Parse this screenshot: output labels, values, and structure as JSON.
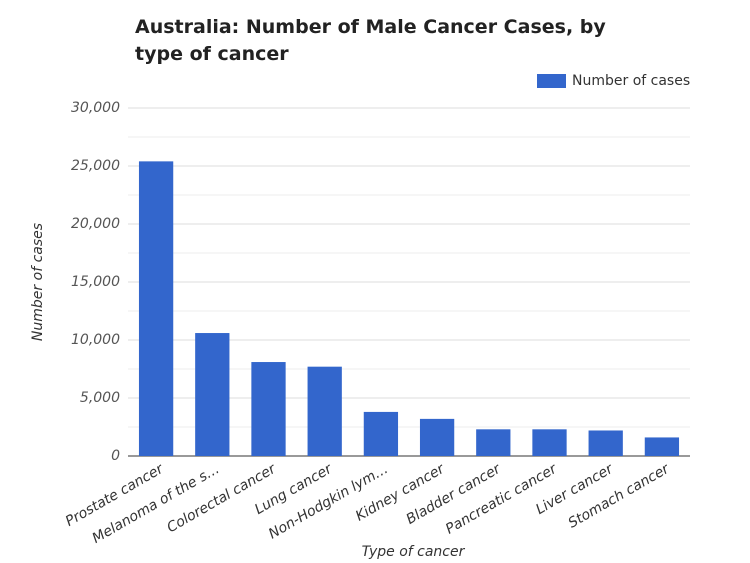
{
  "chart_data": {
    "type": "bar",
    "title": "Australia: Number of Male Cancer Cases, by type of cancer",
    "x_label": "Type of cancer",
    "y_label": "Number of cases",
    "categories": [
      "Prostate cancer",
      "Melanoma of the s…",
      "Colorectal cancer",
      "Lung cancer",
      "Non-Hodgkin lym…",
      "Kidney cancer",
      "Bladder cancer",
      "Pancreatic cancer",
      "Liver cancer",
      "Stomach cancer"
    ],
    "series": [
      {
        "name": "Number of cases",
        "color": "#3366cc",
        "values": [
          25400,
          10600,
          8100,
          7700,
          3800,
          3200,
          2300,
          2300,
          2200,
          1600
        ]
      }
    ],
    "ylim": [
      0,
      30000
    ],
    "yticks": [
      0,
      {
        "value": 5000,
        "label": "5,000"
      },
      {
        "value": 10000,
        "label": "10,000"
      },
      {
        "value": 15000,
        "label": "15,000"
      },
      {
        "value": 20000,
        "label": "20,000"
      },
      {
        "value": 25000,
        "label": "25,000"
      },
      {
        "value": 30000,
        "label": "30,000"
      }
    ],
    "minor_grid": [
      2500,
      7500,
      12500,
      17500,
      22500,
      27500
    ],
    "grid": true,
    "legend": "top-right"
  }
}
